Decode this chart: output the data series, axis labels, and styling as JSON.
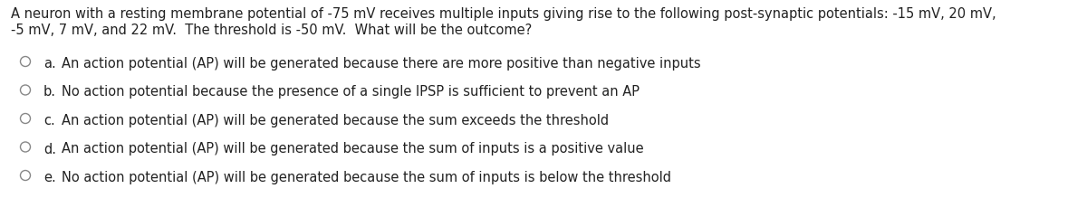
{
  "background_color": "#ffffff",
  "figsize": [
    12.0,
    2.19
  ],
  "dpi": 100,
  "question_line1": "A neuron with a resting membrane potential of -75 mV receives multiple inputs giving rise to the following post-synaptic potentials: -15 mV, 20 mV,",
  "question_line2": "-5 mV, 7 mV, and 22 mV.  The threshold is -50 mV.  What will be the outcome?",
  "question_fontsize": 10.5,
  "question_color": "#222222",
  "options": [
    {
      "label": "a.",
      "text": "An action potential (AP) will be generated because there are more positive than negative inputs"
    },
    {
      "label": "b.",
      "text": "No action potential because the presence of a single IPSP is sufficient to prevent an AP"
    },
    {
      "label": "c.",
      "text": "An action potential (AP) will be generated because the sum exceeds the threshold"
    },
    {
      "label": "d.",
      "text": "An action potential (AP) will be generated because the sum of inputs is a positive value"
    },
    {
      "label": "e.",
      "text": "No action potential (AP) will be generated because the sum of inputs is below the threshold"
    }
  ],
  "option_fontsize": 10.5,
  "option_color": "#222222",
  "circle_color": "#888888",
  "circle_linewidth": 1.0
}
